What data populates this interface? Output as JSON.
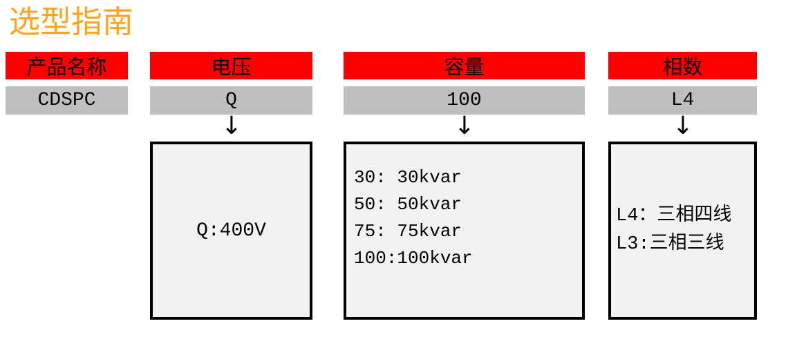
{
  "page": {
    "title": "选型指南"
  },
  "colors": {
    "title_orange": "#FFA41C",
    "header_red": "#FE0000",
    "code_gray": "#BFBFBF",
    "box_fill": "#F2F2F2",
    "box_border": "#000000"
  },
  "icons": {
    "arrow_down": "↓"
  },
  "columns": [
    {
      "header": "产品名称",
      "code": "CDSPC",
      "has_arrow": false,
      "box_lines": []
    },
    {
      "header": "电压",
      "code": "Q",
      "has_arrow": true,
      "box_lines": [
        "Q:400V"
      ]
    },
    {
      "header": "容量",
      "code": "100",
      "has_arrow": true,
      "box_lines": [
        "30: 30kvar",
        "50: 50kvar",
        "75: 75kvar",
        "100:100kvar"
      ]
    },
    {
      "header": "相数",
      "code": "L4",
      "has_arrow": true,
      "box_lines": [
        "L4：三相四线",
        "L3:三相三线"
      ]
    }
  ]
}
